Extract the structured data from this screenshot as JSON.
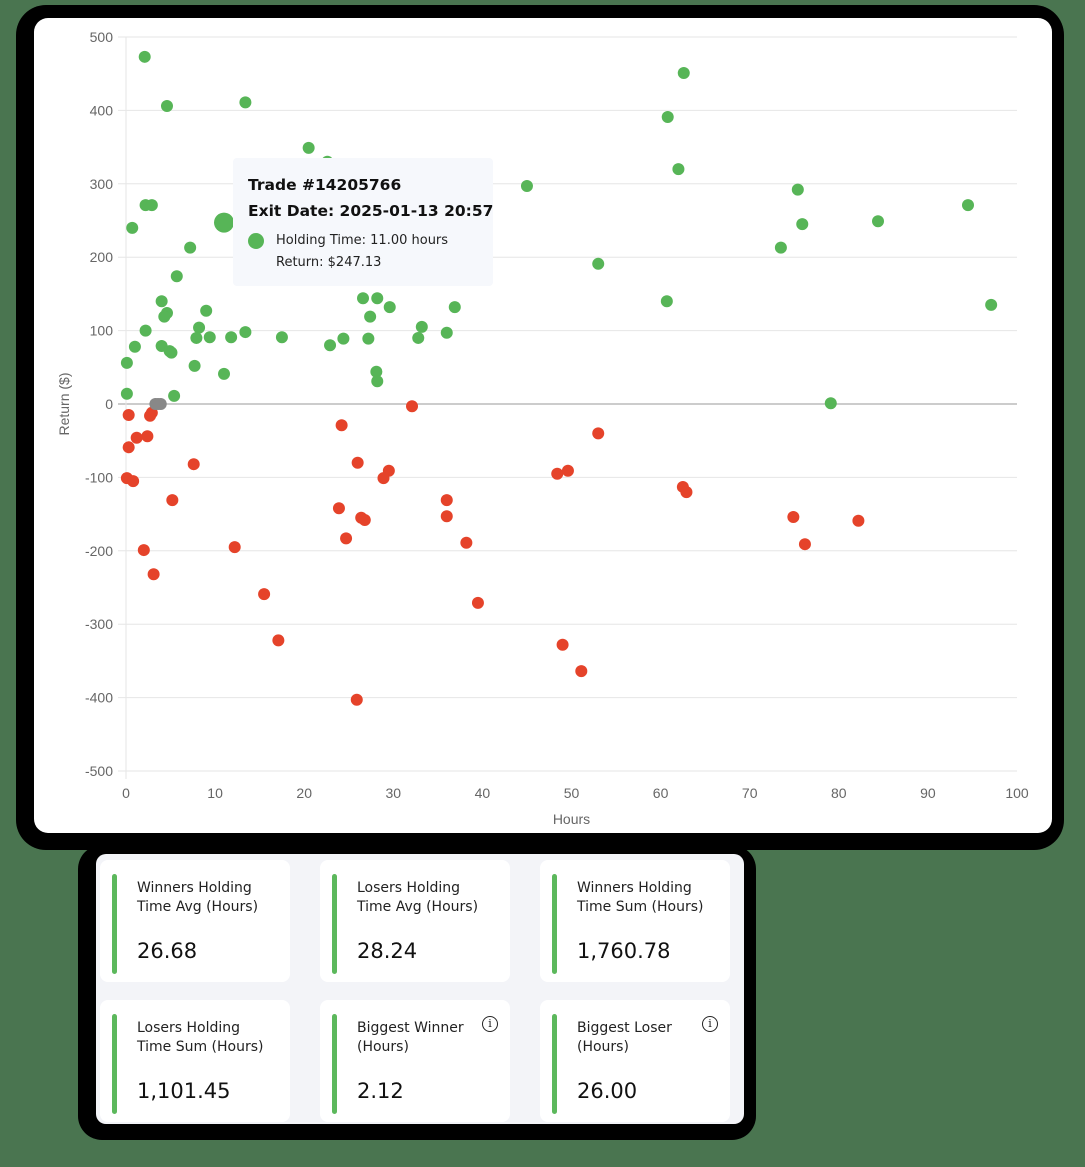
{
  "colors": {
    "winner": "#57b557",
    "loser": "#e5432a",
    "neutral": "#888888",
    "accent_bar": "#5cb85c",
    "background": "#4a7550"
  },
  "chart_data": {
    "type": "scatter",
    "title": "",
    "xlabel": "Hours",
    "ylabel": "Return ($)",
    "xlim": [
      0,
      100
    ],
    "ylim": [
      -500,
      500
    ],
    "x_ticks": [
      "0",
      "10",
      "20",
      "30",
      "40",
      "50",
      "60",
      "70",
      "80",
      "90",
      "100"
    ],
    "y_ticks": [
      "500",
      "400",
      "300",
      "200",
      "100",
      "0",
      "-100",
      "-200",
      "-300",
      "-400",
      "-500"
    ],
    "grid": true,
    "legend": "none",
    "series": [
      {
        "name": "Winners",
        "color": "#57b557",
        "points": [
          [
            2.1,
            473
          ],
          [
            4.6,
            406
          ],
          [
            13.4,
            411
          ],
          [
            20.5,
            349
          ],
          [
            22.6,
            330
          ],
          [
            2.2,
            271
          ],
          [
            2.9,
            271
          ],
          [
            0.7,
            240
          ],
          [
            7.2,
            213
          ],
          [
            11.0,
            247.13
          ],
          [
            5.7,
            174
          ],
          [
            4.0,
            140
          ],
          [
            4.6,
            124
          ],
          [
            4.3,
            119
          ],
          [
            2.2,
            100
          ],
          [
            1.0,
            78
          ],
          [
            4.0,
            79
          ],
          [
            4.9,
            72
          ],
          [
            5.1,
            70
          ],
          [
            9.0,
            127
          ],
          [
            8.2,
            104
          ],
          [
            7.9,
            90
          ],
          [
            9.4,
            91
          ],
          [
            11.8,
            91
          ],
          [
            13.4,
            98
          ],
          [
            17.5,
            91
          ],
          [
            7.7,
            52
          ],
          [
            11.0,
            41
          ],
          [
            0.1,
            56
          ],
          [
            0.1,
            14
          ],
          [
            5.4,
            11
          ],
          [
            22.9,
            80
          ],
          [
            24.4,
            89
          ],
          [
            26.6,
            144
          ],
          [
            28.2,
            144
          ],
          [
            27.4,
            119
          ],
          [
            27.2,
            89
          ],
          [
            29.6,
            132
          ],
          [
            28.1,
            44
          ],
          [
            28.2,
            31
          ],
          [
            32.8,
            90
          ],
          [
            33.2,
            105
          ],
          [
            36.0,
            97
          ],
          [
            36.9,
            132
          ],
          [
            45.0,
            297
          ],
          [
            53.0,
            191
          ],
          [
            60.8,
            391
          ],
          [
            62.6,
            451
          ],
          [
            62.0,
            320
          ],
          [
            60.7,
            140
          ],
          [
            73.5,
            213
          ],
          [
            75.4,
            292
          ],
          [
            75.9,
            245
          ],
          [
            84.4,
            249
          ],
          [
            94.5,
            271
          ],
          [
            97.1,
            135
          ],
          [
            79.1,
            1
          ]
        ]
      },
      {
        "name": "Losers",
        "color": "#e5432a",
        "points": [
          [
            0.3,
            -15
          ],
          [
            2.9,
            -12
          ],
          [
            2.7,
            -16
          ],
          [
            1.2,
            -46
          ],
          [
            2.4,
            -44
          ],
          [
            0.3,
            -59
          ],
          [
            0.1,
            -101
          ],
          [
            0.8,
            -105
          ],
          [
            5.2,
            -131
          ],
          [
            7.6,
            -82
          ],
          [
            2.0,
            -199
          ],
          [
            3.1,
            -232
          ],
          [
            12.2,
            -195
          ],
          [
            15.5,
            -259
          ],
          [
            17.1,
            -322
          ],
          [
            24.2,
            -29
          ],
          [
            26.0,
            -80
          ],
          [
            23.9,
            -142
          ],
          [
            24.7,
            -183
          ],
          [
            26.4,
            -155
          ],
          [
            26.8,
            -158
          ],
          [
            29.5,
            -91
          ],
          [
            28.9,
            -101
          ],
          [
            32.1,
            -3
          ],
          [
            25.9,
            -403
          ],
          [
            36.0,
            -131
          ],
          [
            36.0,
            -153
          ],
          [
            38.2,
            -189
          ],
          [
            39.5,
            -271
          ],
          [
            48.4,
            -95
          ],
          [
            49.6,
            -91
          ],
          [
            53.0,
            -40
          ],
          [
            49.0,
            -328
          ],
          [
            51.1,
            -364
          ],
          [
            62.5,
            -113
          ],
          [
            62.9,
            -120
          ],
          [
            74.9,
            -154
          ],
          [
            76.2,
            -191
          ],
          [
            82.2,
            -159
          ]
        ]
      },
      {
        "name": "Breakeven",
        "color": "#888888",
        "points": [
          [
            3.3,
            0
          ],
          [
            3.6,
            0
          ],
          [
            3.9,
            0
          ]
        ]
      }
    ],
    "highlighted_point": {
      "x": 11.0,
      "y": 247.13
    }
  },
  "tooltip": {
    "title": "Trade #14205766",
    "exit_date": "Exit Date: 2025-01-13 20:57",
    "holding_time": "Holding Time: 11.00 hours",
    "return": "Return: $247.13"
  },
  "metrics": [
    {
      "label": "Winners Holding Time Avg (Hours)",
      "value": "26.68",
      "info": false
    },
    {
      "label": "Losers Holding Time Avg (Hours)",
      "value": "28.24",
      "info": false
    },
    {
      "label": "Winners Holding Time Sum (Hours)",
      "value": "1,760.78",
      "info": false
    },
    {
      "label": "Losers Holding Time Sum (Hours)",
      "value": "1,101.45",
      "info": false
    },
    {
      "label": "Biggest Winner (Hours)",
      "value": "2.12",
      "info": true
    },
    {
      "label": "Biggest Loser (Hours)",
      "value": "26.00",
      "info": true
    }
  ]
}
